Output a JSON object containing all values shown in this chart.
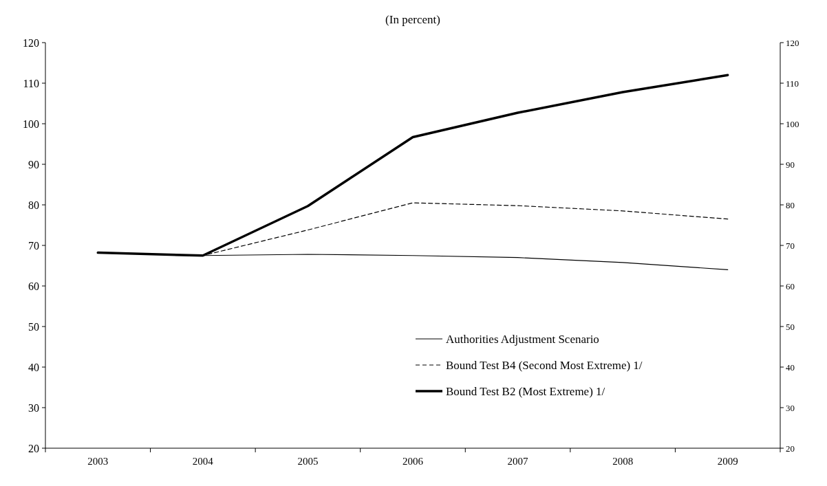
{
  "chart_data": {
    "type": "line",
    "title": "(In percent)",
    "categories": [
      "2003",
      "2004",
      "2005",
      "2006",
      "2007",
      "2008",
      "2009"
    ],
    "series": [
      {
        "name": "Authorities Adjustment Scenario",
        "color": "#000000",
        "line_style": "solid",
        "values": [
          68.2,
          67.5,
          67.8,
          67.5,
          67.0,
          65.8,
          64.0
        ]
      },
      {
        "name": "Bound Test B4 (Second Most Extreme) 1/",
        "color": "#000000",
        "line_style": "dashed",
        "values": [
          68.2,
          67.5,
          73.8,
          80.5,
          79.8,
          78.5,
          76.5
        ]
      },
      {
        "name": "Bound Test B2 (Most Extreme) 1/",
        "color": "#000000",
        "line_style": "solid",
        "values": [
          68.2,
          67.5,
          79.7,
          96.7,
          102.7,
          107.8,
          112.0
        ]
      }
    ],
    "ylim": [
      20,
      120
    ],
    "yticks": [
      20,
      30,
      40,
      50,
      60,
      70,
      80,
      90,
      100,
      110,
      120
    ],
    "y2lim": [
      20,
      120
    ],
    "y2ticks": [
      20,
      30,
      40,
      50,
      60,
      70,
      80,
      90,
      100,
      110,
      120
    ],
    "grid": false,
    "legend": "bottom right"
  }
}
